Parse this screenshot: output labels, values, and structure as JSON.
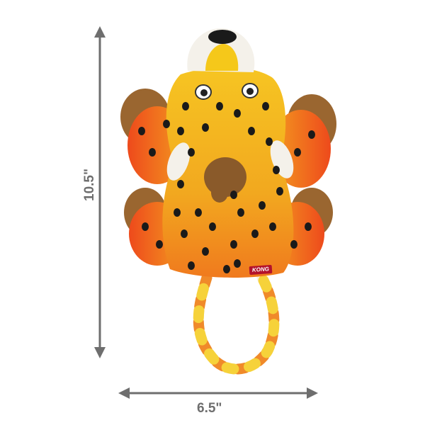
{
  "dimensions": {
    "height_label": "10.5\"",
    "width_label": "6.5\""
  },
  "product": {
    "tag_brand": "KONG"
  },
  "colors": {
    "dimension_arrow": "#6e6e6e",
    "body_yellow": "#f2b51c",
    "body_orange": "#f0641e",
    "spots": "#1a1a1a",
    "fur": "#9a6630"
  }
}
